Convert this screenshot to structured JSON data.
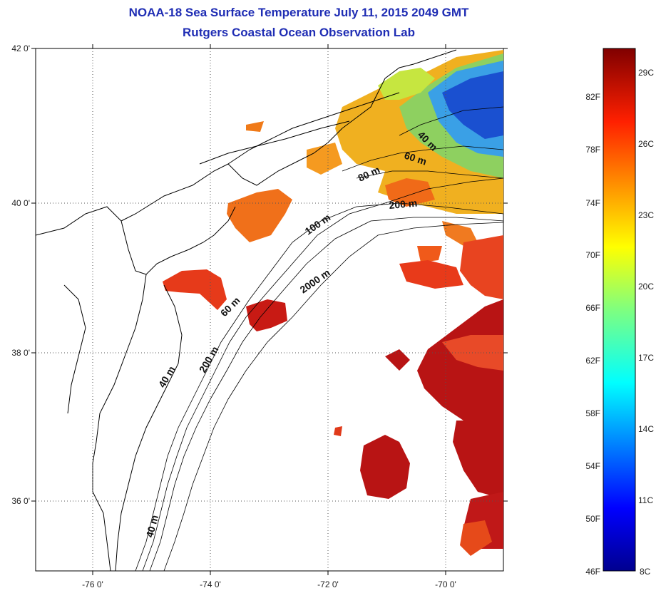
{
  "title": {
    "line1": "NOAA-18 Sea Surface Temperature July 11, 2015 2049 GMT",
    "line2": "Rutgers Coastal Ocean Observation Lab"
  },
  "map": {
    "lat_ticks": [
      "42 0'",
      "40 0'",
      "38 0'",
      "36 0'"
    ],
    "lon_ticks": [
      "-76 0'",
      "-74 0'",
      "-72 0'",
      "-70 0'"
    ],
    "contour_labels": [
      "40 m",
      "60 m",
      "80 m",
      "200 m",
      "100 m",
      "2000 m",
      "60 m",
      "200 m",
      "40 m",
      "40 m"
    ],
    "colors": {
      "land": "#ffffff",
      "coast": "#000000",
      "grid": "#555555",
      "warm": "#b81414",
      "hot": "#e63a1a",
      "mild": "#f59a20",
      "cool": "#3aa0e6",
      "cold": "#1a50d0"
    }
  },
  "colorbar": {
    "fahrenheit": [
      "82F",
      "78F",
      "74F",
      "70F",
      "66F",
      "62F",
      "58F",
      "54F",
      "50F",
      "46F"
    ],
    "celsius": [
      "29C",
      "26C",
      "23C",
      "20C",
      "17C",
      "14C",
      "11C",
      "8C"
    ]
  }
}
